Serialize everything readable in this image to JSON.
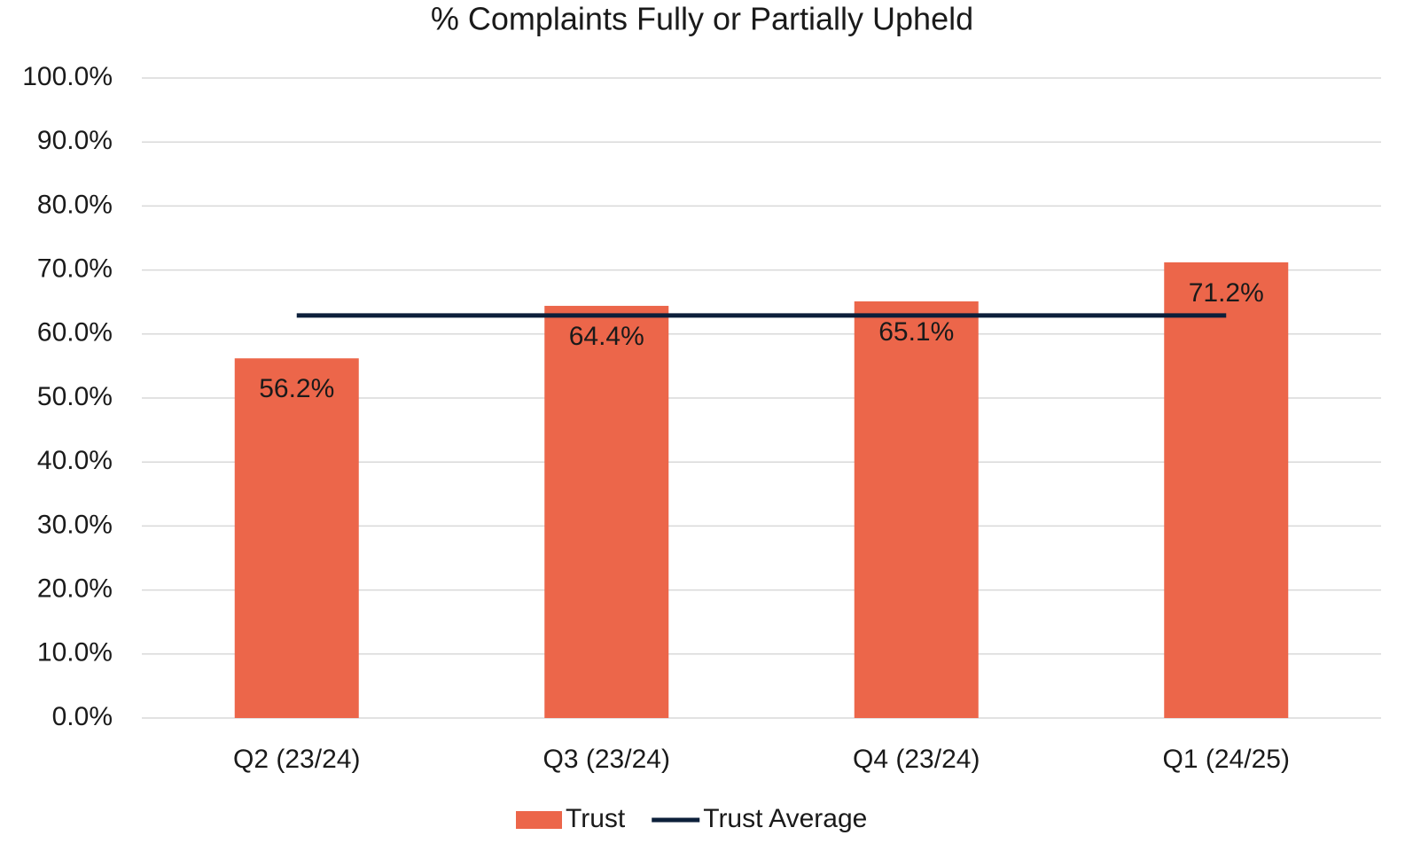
{
  "chart_data": {
    "type": "bar",
    "title": "% Complaints Fully or Partially Upheld",
    "categories": [
      "Q2 (23/24)",
      "Q3 (23/24)",
      "Q4 (23/24)",
      "Q1 (24/25)"
    ],
    "series": [
      {
        "name": "Trust",
        "type": "bar",
        "color": "#ec664a",
        "values": [
          56.2,
          64.4,
          65.1,
          71.2
        ],
        "value_labels": [
          "56.2%",
          "64.4%",
          "65.1%",
          "71.2%"
        ]
      },
      {
        "name": "Trust Average",
        "type": "line",
        "color": "#0c1f3a",
        "values": [
          62.9,
          62.9,
          62.9,
          62.9
        ]
      }
    ],
    "ylim": [
      0,
      100
    ],
    "yticks": [
      {
        "value": 0,
        "label": "0.0%"
      },
      {
        "value": 10,
        "label": "10.0%"
      },
      {
        "value": 20,
        "label": "20.0%"
      },
      {
        "value": 30,
        "label": "30.0%"
      },
      {
        "value": 40,
        "label": "40.0%"
      },
      {
        "value": 50,
        "label": "50.0%"
      },
      {
        "value": 60,
        "label": "60.0%"
      },
      {
        "value": 70,
        "label": "70.0%"
      },
      {
        "value": 80,
        "label": "80.0%"
      },
      {
        "value": 90,
        "label": "90.0%"
      },
      {
        "value": 100,
        "label": "100.0%"
      }
    ],
    "grid": true,
    "legend": "bottom"
  }
}
